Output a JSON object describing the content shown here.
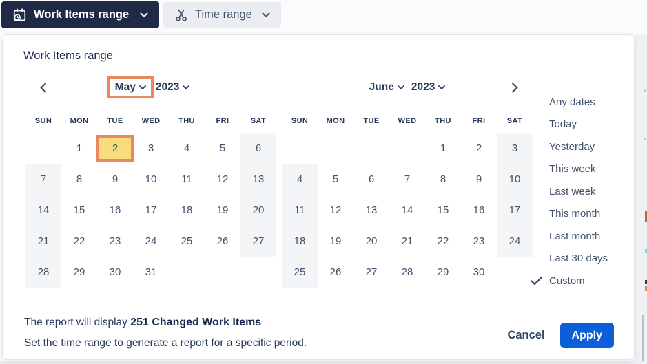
{
  "toolbar": {
    "work_items_button": "Work Items range",
    "time_range_button": "Time range"
  },
  "dialog": {
    "title": "Work Items range",
    "calendars": [
      {
        "month": "May",
        "year": "2023",
        "nav_arrow": "left",
        "month_annotated": true,
        "day_headers": [
          "SUN",
          "MON",
          "TUE",
          "WED",
          "THU",
          "FRI",
          "SAT"
        ],
        "weeks": [
          [
            "",
            "1",
            "2",
            "3",
            "4",
            "5",
            "6"
          ],
          [
            "7",
            "8",
            "9",
            "10",
            "11",
            "12",
            "13"
          ],
          [
            "14",
            "15",
            "16",
            "17",
            "18",
            "19",
            "20"
          ],
          [
            "21",
            "22",
            "23",
            "24",
            "25",
            "26",
            "27"
          ],
          [
            "28",
            "29",
            "30",
            "31",
            "",
            "",
            ""
          ]
        ],
        "selected_day": "2"
      },
      {
        "month": "June",
        "year": "2023",
        "nav_arrow": "right",
        "month_annotated": false,
        "day_headers": [
          "SUN",
          "MON",
          "TUE",
          "WED",
          "THU",
          "FRI",
          "SAT"
        ],
        "weeks": [
          [
            "",
            "",
            "",
            "",
            "1",
            "2",
            "3"
          ],
          [
            "4",
            "5",
            "6",
            "7",
            "8",
            "9",
            "10"
          ],
          [
            "11",
            "12",
            "13",
            "14",
            "15",
            "16",
            "17"
          ],
          [
            "18",
            "19",
            "20",
            "21",
            "22",
            "23",
            "24"
          ],
          [
            "25",
            "26",
            "27",
            "28",
            "29",
            "30",
            ""
          ]
        ],
        "selected_day": ""
      }
    ],
    "presets": {
      "items": [
        "Any dates",
        "Today",
        "Yesterday",
        "This week",
        "Last week",
        "This month",
        "Last month",
        "Last 30 days",
        "Custom"
      ],
      "selected": "Custom"
    },
    "footer": {
      "summary_prefix": "The report will display ",
      "summary_bold": "251 Changed Work Items",
      "description": "Set the time range to generate a report for a specific period.",
      "cancel": "Cancel",
      "apply": "Apply"
    }
  },
  "colors": {
    "primary_button_bg": "#1f2a47",
    "secondary_button_bg": "#ebedf1",
    "apply_bg": "#0c5fd9",
    "annotation_orange": "#e9875f",
    "selected_day_yellow": "#f8db7d",
    "weekend_gray": "#f4f5f7",
    "text_navy": "#253858",
    "text_slate": "#42526e"
  }
}
